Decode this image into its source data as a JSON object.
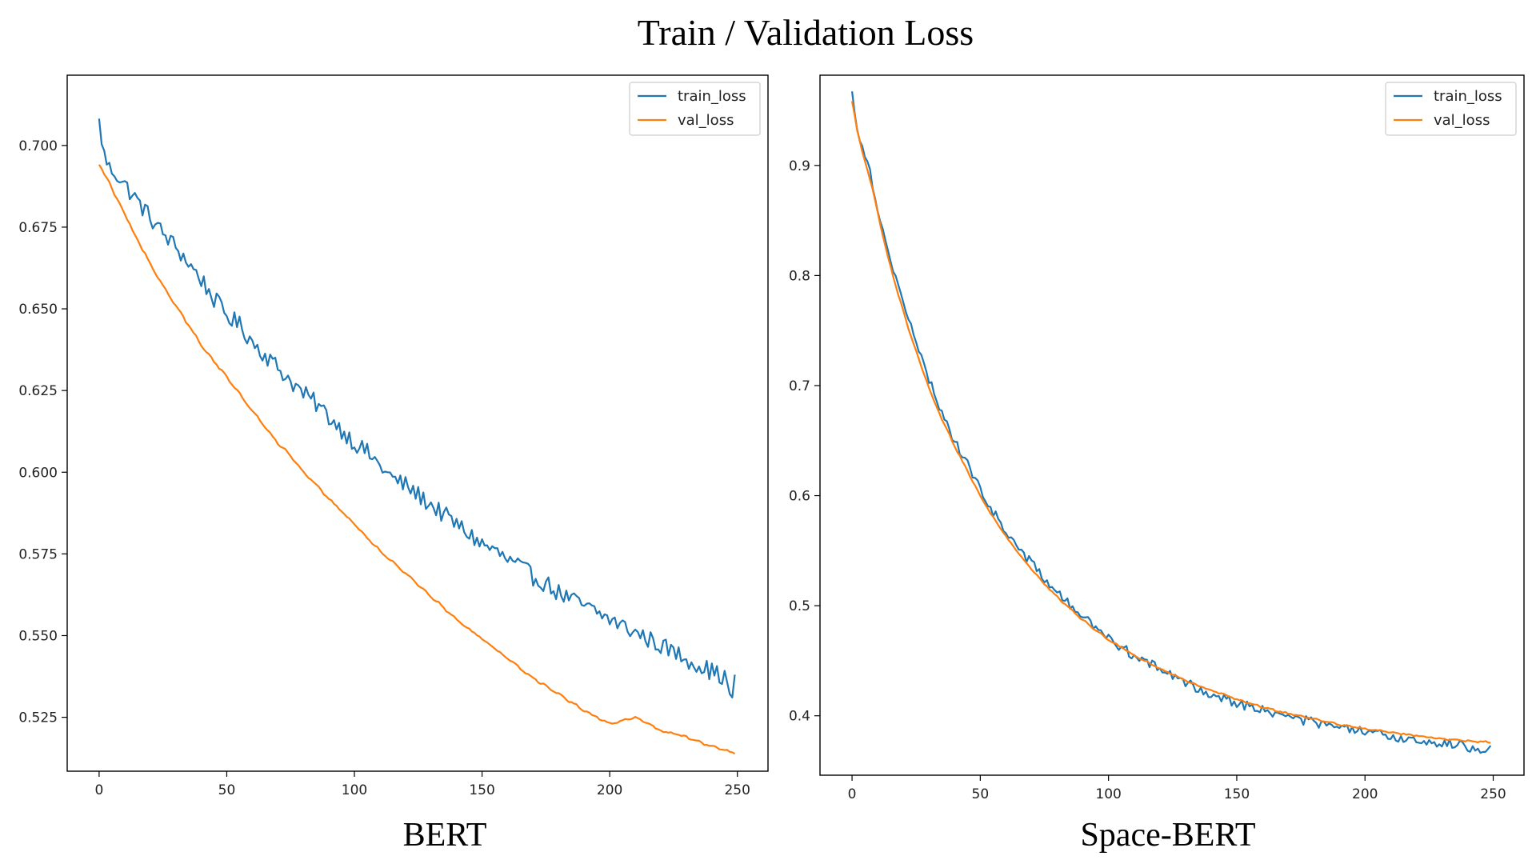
{
  "figure_title": "Train / Validation Loss",
  "colors": {
    "train": "#1f77b4",
    "val": "#ff7f0e"
  },
  "chart_data": [
    {
      "type": "line",
      "title": "",
      "caption": "BERT",
      "xlabel": "",
      "ylabel": "",
      "xlim": [
        -12.5,
        262
      ],
      "ylim": [
        0.5085,
        0.7215
      ],
      "xticks": [
        0,
        50,
        100,
        150,
        200,
        250
      ],
      "xtick_labels": [
        "0",
        "50",
        "100",
        "150",
        "200",
        "250"
      ],
      "yticks": [
        0.525,
        0.55,
        0.575,
        0.6,
        0.625,
        0.65,
        0.675,
        0.7
      ],
      "ytick_labels": [
        "0.525",
        "0.550",
        "0.575",
        "0.600",
        "0.625",
        "0.650",
        "0.675",
        "0.700"
      ],
      "legend": {
        "position": "top-right",
        "entries": [
          "train_loss",
          "val_loss"
        ]
      },
      "series": [
        {
          "name": "train_loss",
          "points": [
            [
              0,
              0.707
            ],
            [
              2,
              0.697
            ],
            [
              4,
              0.693
            ],
            [
              6,
              0.692
            ],
            [
              8,
              0.69
            ],
            [
              10,
              0.688
            ],
            [
              12,
              0.686
            ],
            [
              14,
              0.684
            ],
            [
              16,
              0.682
            ],
            [
              18,
              0.68
            ],
            [
              20,
              0.678
            ],
            [
              25,
              0.673
            ],
            [
              30,
              0.669
            ],
            [
              35,
              0.664
            ],
            [
              40,
              0.659
            ],
            [
              45,
              0.653
            ],
            [
              50,
              0.648
            ],
            [
              55,
              0.645
            ],
            [
              60,
              0.64
            ],
            [
              65,
              0.636
            ],
            [
              70,
              0.632
            ],
            [
              75,
              0.628
            ],
            [
              80,
              0.624
            ],
            [
              85,
              0.621
            ],
            [
              90,
              0.617
            ],
            [
              95,
              0.613
            ],
            [
              100,
              0.609
            ],
            [
              105,
              0.606
            ],
            [
              110,
              0.602
            ],
            [
              115,
              0.598
            ],
            [
              120,
              0.596
            ],
            [
              125,
              0.593
            ],
            [
              130,
              0.59
            ],
            [
              135,
              0.587
            ],
            [
              140,
              0.584
            ],
            [
              145,
              0.581
            ],
            [
              150,
              0.578
            ],
            [
              155,
              0.576
            ],
            [
              160,
              0.573
            ],
            [
              165,
              0.571
            ],
            [
              170,
              0.568
            ],
            [
              175,
              0.566
            ],
            [
              180,
              0.563
            ],
            [
              185,
              0.561
            ],
            [
              190,
              0.559
            ],
            [
              195,
              0.557
            ],
            [
              200,
              0.555
            ],
            [
              205,
              0.553
            ],
            [
              210,
              0.551
            ],
            [
              215,
              0.549
            ],
            [
              220,
              0.547
            ],
            [
              225,
              0.545
            ],
            [
              230,
              0.543
            ],
            [
              235,
              0.541
            ],
            [
              240,
              0.539
            ],
            [
              245,
              0.537
            ],
            [
              247,
              0.533
            ],
            [
              248,
              0.53
            ],
            [
              249,
              0.537
            ]
          ],
          "noise": 0.0028
        },
        {
          "name": "val_loss",
          "points": [
            [
              0,
              0.694
            ],
            [
              2,
              0.691
            ],
            [
              4,
              0.689
            ],
            [
              6,
              0.685
            ],
            [
              8,
              0.682
            ],
            [
              10,
              0.679
            ],
            [
              15,
              0.671
            ],
            [
              20,
              0.664
            ],
            [
              25,
              0.657
            ],
            [
              30,
              0.651
            ],
            [
              35,
              0.645
            ],
            [
              40,
              0.639
            ],
            [
              45,
              0.634
            ],
            [
              50,
              0.629
            ],
            [
              55,
              0.624
            ],
            [
              60,
              0.619
            ],
            [
              65,
              0.614
            ],
            [
              70,
              0.609
            ],
            [
              75,
              0.605
            ],
            [
              80,
              0.6
            ],
            [
              85,
              0.596
            ],
            [
              90,
              0.592
            ],
            [
              95,
              0.588
            ],
            [
              100,
              0.584
            ],
            [
              110,
              0.576
            ],
            [
              120,
              0.569
            ],
            [
              130,
              0.562
            ],
            [
              140,
              0.555
            ],
            [
              150,
              0.549
            ],
            [
              160,
              0.543
            ],
            [
              170,
              0.537
            ],
            [
              180,
              0.532
            ],
            [
              190,
              0.527
            ],
            [
              200,
              0.523
            ],
            [
              210,
              0.525
            ],
            [
              220,
              0.521
            ],
            [
              230,
              0.519
            ],
            [
              240,
              0.516
            ],
            [
              249,
              0.514
            ]
          ],
          "noise": 0.0003
        }
      ]
    },
    {
      "type": "line",
      "title": "",
      "caption": "Space-BERT",
      "xlabel": "",
      "ylabel": "",
      "xlim": [
        -12.5,
        262
      ],
      "ylim": [
        0.346,
        0.982
      ],
      "xticks": [
        0,
        50,
        100,
        150,
        200,
        250
      ],
      "xtick_labels": [
        "0",
        "50",
        "100",
        "150",
        "200",
        "250"
      ],
      "yticks": [
        0.4,
        0.5,
        0.6,
        0.7,
        0.8,
        0.9
      ],
      "ytick_labels": [
        "0.4",
        "0.5",
        "0.6",
        "0.7",
        "0.8",
        "0.9"
      ],
      "legend": {
        "position": "top-right",
        "entries": [
          "train_loss",
          "val_loss"
        ]
      },
      "series": [
        {
          "name": "train_loss",
          "points": [
            [
              0,
              0.965
            ],
            [
              2,
              0.935
            ],
            [
              4,
              0.918
            ],
            [
              6,
              0.905
            ],
            [
              8,
              0.883
            ],
            [
              10,
              0.862
            ],
            [
              12,
              0.84
            ],
            [
              14,
              0.822
            ],
            [
              16,
              0.808
            ],
            [
              18,
              0.79
            ],
            [
              20,
              0.776
            ],
            [
              22,
              0.76
            ],
            [
              24,
              0.745
            ],
            [
              26,
              0.731
            ],
            [
              28,
              0.718
            ],
            [
              30,
              0.705
            ],
            [
              32,
              0.693
            ],
            [
              34,
              0.682
            ],
            [
              36,
              0.671
            ],
            [
              38,
              0.66
            ],
            [
              40,
              0.65
            ],
            [
              45,
              0.628
            ],
            [
              50,
              0.606
            ],
            [
              55,
              0.585
            ],
            [
              60,
              0.568
            ],
            [
              65,
              0.552
            ],
            [
              70,
              0.538
            ],
            [
              75,
              0.525
            ],
            [
              80,
              0.512
            ],
            [
              85,
              0.5
            ],
            [
              90,
              0.49
            ],
            [
              95,
              0.48
            ],
            [
              100,
              0.47
            ],
            [
              110,
              0.455
            ],
            [
              120,
              0.442
            ],
            [
              130,
              0.43
            ],
            [
              140,
              0.42
            ],
            [
              150,
              0.412
            ],
            [
              160,
              0.405
            ],
            [
              170,
              0.399
            ],
            [
              180,
              0.394
            ],
            [
              190,
              0.389
            ],
            [
              200,
              0.385
            ],
            [
              210,
              0.381
            ],
            [
              220,
              0.378
            ],
            [
              230,
              0.375
            ],
            [
              240,
              0.372
            ],
            [
              245,
              0.37
            ],
            [
              249,
              0.373
            ]
          ],
          "noise": 0.0045
        },
        {
          "name": "val_loss",
          "points": [
            [
              0,
              0.958
            ],
            [
              2,
              0.932
            ],
            [
              4,
              0.913
            ],
            [
              6,
              0.896
            ],
            [
              8,
              0.878
            ],
            [
              10,
              0.858
            ],
            [
              12,
              0.836
            ],
            [
              14,
              0.817
            ],
            [
              16,
              0.8
            ],
            [
              18,
              0.782
            ],
            [
              20,
              0.768
            ],
            [
              22,
              0.752
            ],
            [
              24,
              0.738
            ],
            [
              26,
              0.724
            ],
            [
              28,
              0.711
            ],
            [
              30,
              0.698
            ],
            [
              32,
              0.686
            ],
            [
              34,
              0.675
            ],
            [
              36,
              0.665
            ],
            [
              38,
              0.655
            ],
            [
              40,
              0.645
            ],
            [
              45,
              0.622
            ],
            [
              50,
              0.6
            ],
            [
              55,
              0.58
            ],
            [
              60,
              0.563
            ],
            [
              65,
              0.547
            ],
            [
              70,
              0.533
            ],
            [
              75,
              0.52
            ],
            [
              80,
              0.508
            ],
            [
              85,
              0.497
            ],
            [
              90,
              0.487
            ],
            [
              95,
              0.478
            ],
            [
              100,
              0.469
            ],
            [
              110,
              0.455
            ],
            [
              120,
              0.443
            ],
            [
              130,
              0.432
            ],
            [
              140,
              0.423
            ],
            [
              150,
              0.415
            ],
            [
              160,
              0.408
            ],
            [
              170,
              0.402
            ],
            [
              180,
              0.397
            ],
            [
              190,
              0.392
            ],
            [
              200,
              0.388
            ],
            [
              210,
              0.385
            ],
            [
              220,
              0.382
            ],
            [
              230,
              0.379
            ],
            [
              240,
              0.377
            ],
            [
              249,
              0.376
            ]
          ],
          "noise": 0.0006
        }
      ]
    }
  ]
}
